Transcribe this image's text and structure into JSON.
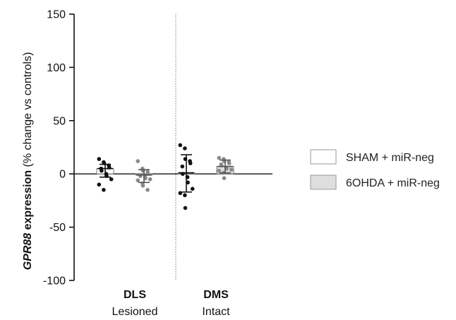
{
  "chart_data": {
    "type": "scatter",
    "ylabel": {
      "gene": "GPR88",
      "main": " expression",
      "unit": "(% change vs controls)"
    },
    "ylim": [
      -100,
      150
    ],
    "yticks": [
      150,
      100,
      50,
      0,
      -50,
      -100
    ],
    "categories": [
      {
        "name": "DLS",
        "sub": "Lesioned"
      },
      {
        "name": "DMS",
        "sub": "Intact"
      }
    ],
    "series": [
      {
        "name": "SHAM + miR-neg",
        "fill": "#ffffff",
        "dot_color": "#111111",
        "bar_fill": "#ffffff",
        "groups": [
          {
            "category": "DLS",
            "mean": 5,
            "sd_low": -3,
            "sd_high": 9,
            "values": [
              14,
              11,
              10,
              8,
              6,
              5,
              3,
              0,
              -2,
              -5,
              -10,
              -15
            ]
          },
          {
            "category": "DMS",
            "mean": 1,
            "sd_low": -17,
            "sd_high": 18,
            "values": [
              27,
              24,
              14,
              12,
              10,
              7,
              0,
              -3,
              -8,
              -14,
              -18,
              -20,
              -32
            ]
          }
        ]
      },
      {
        "name": "6OHDA + miR-neg",
        "fill": "#dedede",
        "dot_color": "#8a8a8a",
        "bar_fill": "#dedede",
        "groups": [
          {
            "category": "DLS",
            "mean": -1,
            "sd_low": -8,
            "sd_high": 4,
            "values": [
              12,
              5,
              3,
              2,
              0,
              -1,
              -2,
              -3,
              -4,
              -5,
              -6,
              -9,
              -11,
              -15
            ]
          },
          {
            "category": "DMS",
            "mean": 7,
            "sd_low": 1,
            "sd_high": 13,
            "values": [
              15,
              14,
              12,
              11,
              10,
              9,
              8,
              6,
              5,
              4,
              3,
              1,
              -4
            ]
          }
        ]
      }
    ],
    "grid": false,
    "legend_position": "right"
  }
}
